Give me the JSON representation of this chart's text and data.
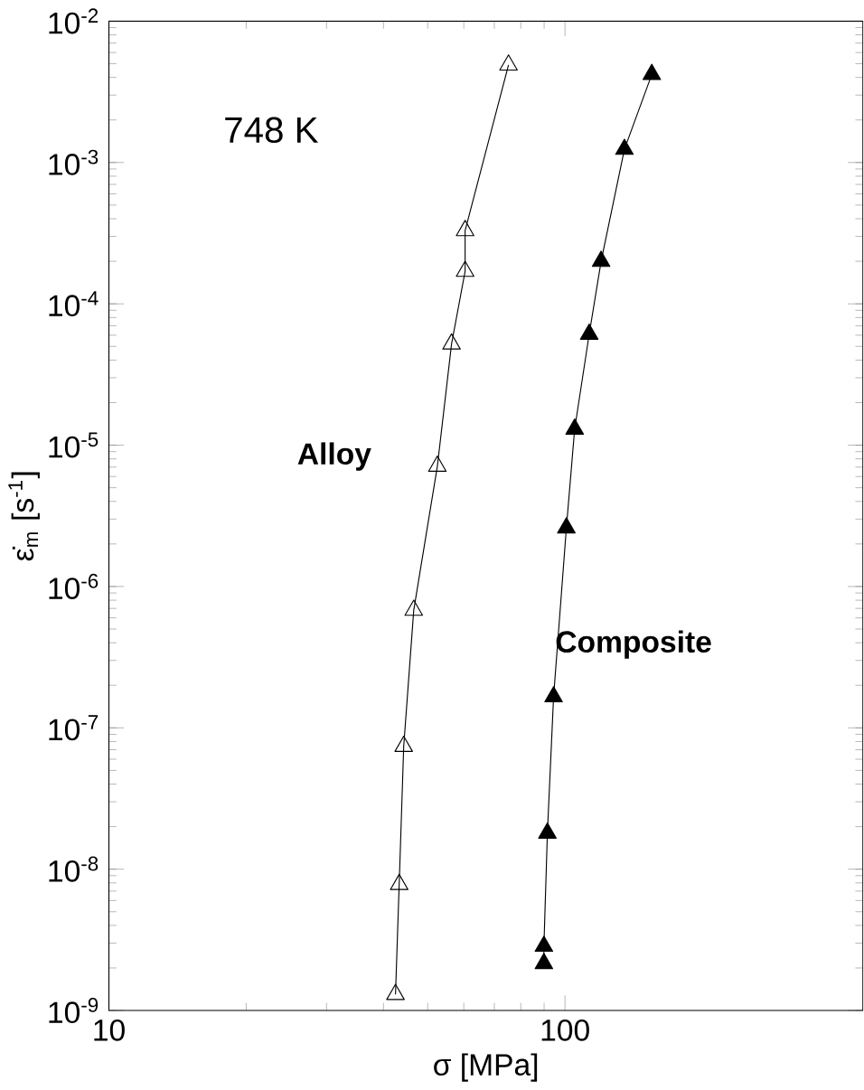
{
  "chart_data": {
    "type": "line",
    "xlabel": "σ [MPa]",
    "ylabel": "ε̇$_{m}$ [s$^{-1}$]",
    "annotations": [
      "748 K"
    ],
    "log": "xy",
    "marker": "triangle",
    "line_style": "solid",
    "grid": false,
    "legend": false,
    "xlim": [
      10,
      450
    ],
    "xticks": [
      10,
      100
    ],
    "ylim": [
      1e-09,
      0.01
    ],
    "yticks": [
      {
        "value": 1e-09,
        "label": "10$^{-9}$"
      },
      {
        "value": 1e-08,
        "label": "10$^{-8}$"
      },
      {
        "value": 1e-07,
        "label": "10$^{-7}$"
      },
      {
        "value": 1e-06,
        "label": "10$^{-6}$"
      },
      {
        "value": 1e-05,
        "label": "10$^{-5}$"
      },
      {
        "value": 0.0001,
        "label": "10$^{-4}$"
      },
      {
        "value": 0.001,
        "label": "10$^{-3}$"
      },
      {
        "value": 0.01,
        "label": "10$^{-2}$"
      }
    ],
    "series": [
      {
        "name": "Alloy",
        "color": "#000000",
        "x": [
          75.2,
          60.4,
          60.4,
          56.4,
          52.5,
          46.6,
          44.3,
          43.3,
          42.5
        ],
        "values": [
          0.0049,
          0.00033,
          0.00017,
          5.2e-05,
          7.1e-06,
          6.8e-07,
          7.4e-08,
          7.8e-09,
          1.3e-09
        ]
      },
      {
        "name": "Composite",
        "color": "#000000",
        "x": [
          155,
          135,
          120,
          113,
          105,
          100.7,
          94.4,
          91.5,
          89.9,
          89.9
        ],
        "values": [
          0.0042,
          0.00124,
          0.0002,
          6.1e-05,
          1.3e-05,
          2.6e-06,
          1.66e-07,
          1.8e-08,
          2.85e-09,
          2.15e-09
        ]
      }
    ]
  }
}
